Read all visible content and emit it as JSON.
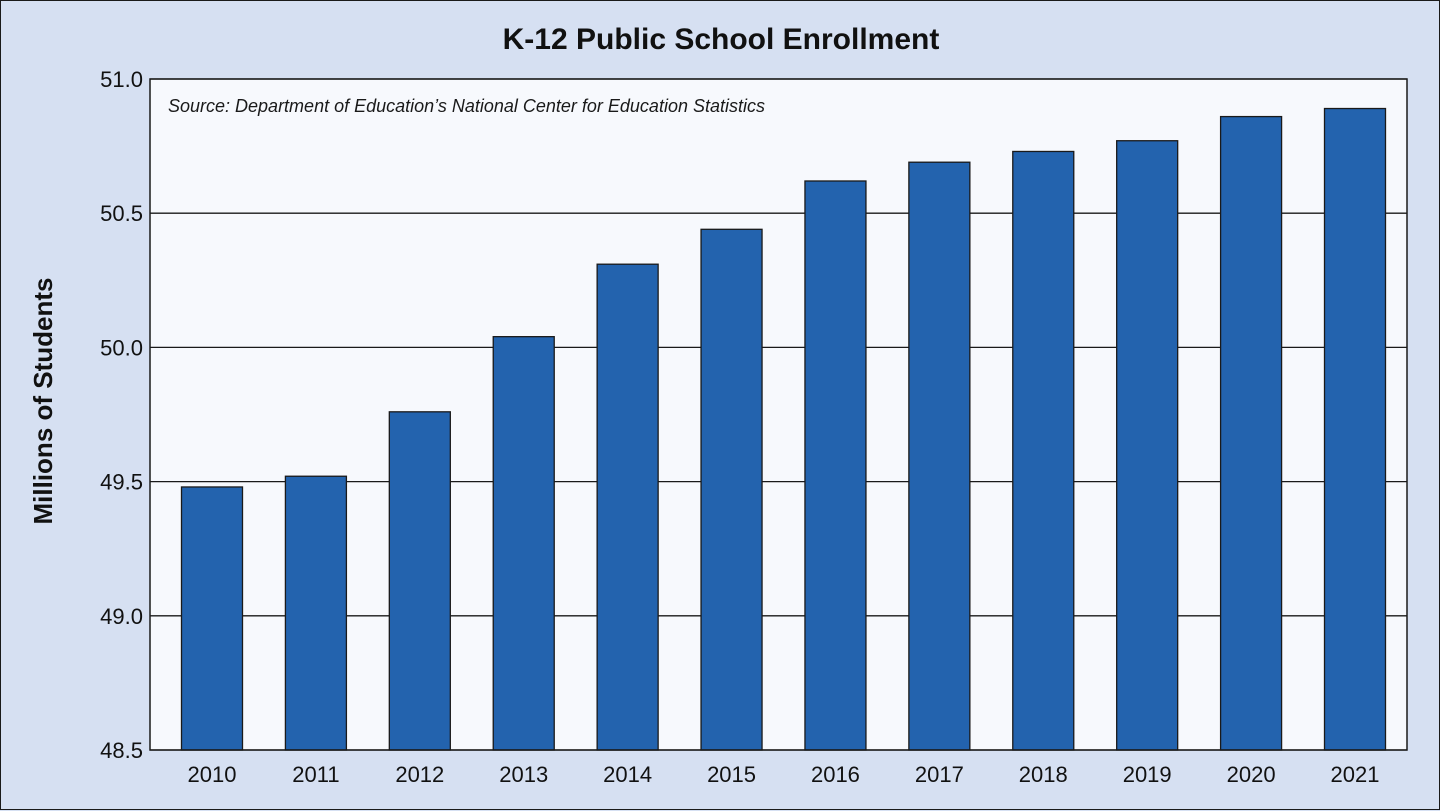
{
  "chart_data": {
    "type": "bar",
    "title": "K-12 Public School Enrollment",
    "source": "Source: Department of Education’s National Center for Education Statistics",
    "xlabel": "",
    "ylabel": "Millions of Students",
    "ylim": [
      48.5,
      51.0
    ],
    "yticks": [
      "48.5",
      "49.0",
      "49.5",
      "50.0",
      "50.5",
      "51.0"
    ],
    "ytick_values": [
      48.5,
      49.0,
      49.5,
      50.0,
      50.5,
      51.0
    ],
    "grid": true,
    "categories": [
      "2010",
      "2011",
      "2012",
      "2013",
      "2014",
      "2015",
      "2016",
      "2017",
      "2018",
      "2019",
      "2020",
      "2021"
    ],
    "values": [
      49.48,
      49.52,
      49.76,
      50.04,
      50.31,
      50.44,
      50.62,
      50.69,
      50.73,
      50.77,
      50.86,
      50.89
    ]
  },
  "colors": {
    "background": "#d6e0f2",
    "plot_background": "#f7f9fd",
    "bar_fill": "#2363ae",
    "bar_stroke": "#1a1a1a",
    "grid": "#1a1a1a"
  }
}
